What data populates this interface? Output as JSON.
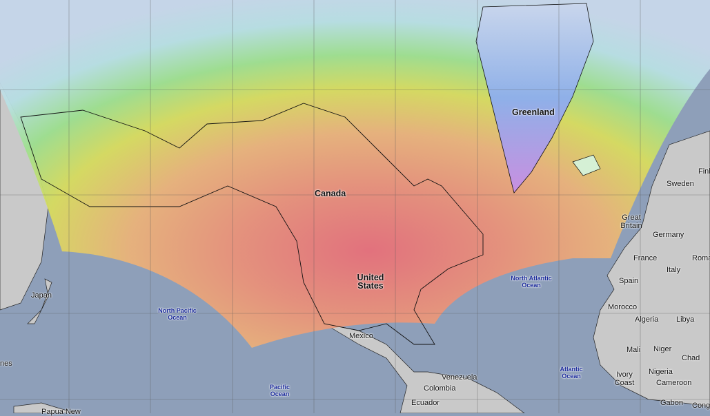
{
  "map": {
    "layer": "temperature-overlay",
    "colors": {
      "ocean": "#8e9fb9",
      "land": "#c9c9c9",
      "warm": "#e8857a",
      "mild": "#e9a87a",
      "cool": "#d6e05a",
      "cold": "#8fd9a8",
      "icy": "#c6d8ec",
      "frigid": "#8f7fe0"
    },
    "labels": {
      "greenland": "Greenland",
      "canada": "Canada",
      "united_states": "United States",
      "mexico": "Mexico",
      "north_atlantic": "North Atlantic Ocean",
      "north_pacific": "North Pacific Ocean",
      "pacific": "Pacific Ocean",
      "atlantic": "Atlantic Ocean",
      "japan": "Japan",
      "philippines_partial": "nes",
      "papua": "Papua New",
      "venezuela": "Venezuela",
      "colombia": "Colombia",
      "ecuador": "Ecuador",
      "sweden": "Sweden",
      "finland_partial": "Finla",
      "great_britain": "Great Britain",
      "germany": "Germany",
      "france": "France",
      "italy": "Italy",
      "romania_partial": "Roma",
      "spain": "Spain",
      "morocco": "Morocco",
      "algeria": "Algeria",
      "libya": "Libya",
      "mali": "Mali",
      "niger": "Niger",
      "chad": "Chad",
      "ivory_coast": "Ivory Coast",
      "nigeria": "Nigeria",
      "cameroon": "Cameroon",
      "gabon": "Gabon",
      "congo_partial": "Cong"
    }
  }
}
